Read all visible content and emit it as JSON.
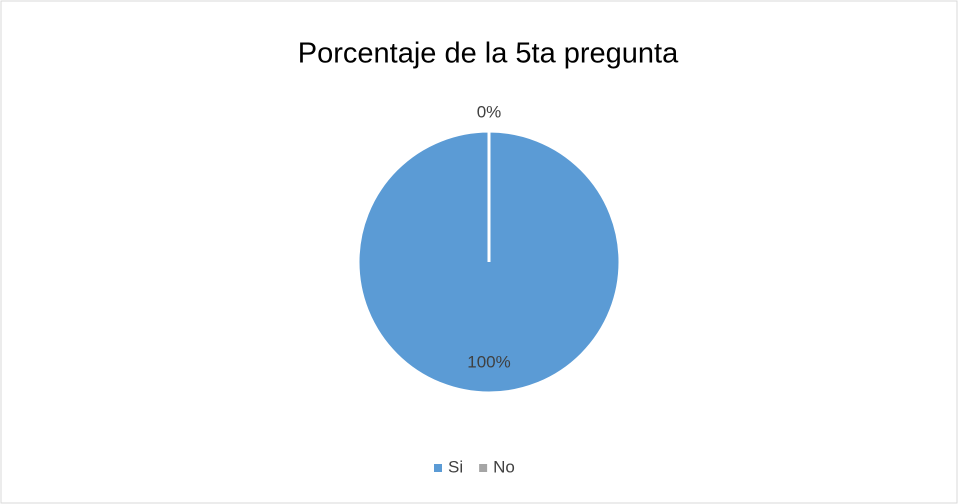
{
  "chart_data": {
    "type": "pie",
    "title": "Porcentaje de la 5ta pregunta",
    "categories": [
      "Si",
      "No"
    ],
    "values": [
      100,
      0
    ],
    "value_labels": [
      "100%",
      "0%"
    ],
    "colors": [
      "#5b9bd5",
      "#a5a5a5"
    ],
    "legend": "bottom"
  }
}
